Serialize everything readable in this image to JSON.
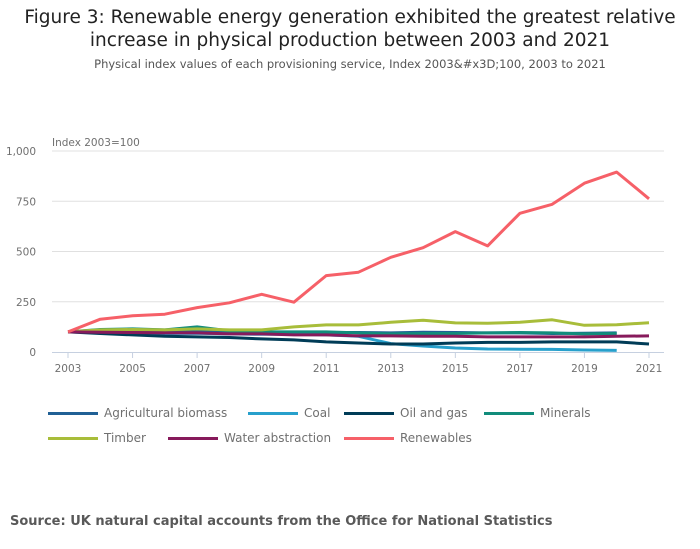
{
  "title": "Figure 3: Renewable energy generation exhibited the greatest relative increase in physical production between 2003 and 2021",
  "subtitle": "Physical index values of each provisioning service, Index 2003&#x3D;100, 2003 to 2021",
  "source": "Source: UK natural capital accounts from the Office for National Statistics",
  "chart_data": {
    "type": "line",
    "title": "Figure 3: Renewable energy generation exhibited the greatest relative increase in physical production between 2003 and 2021",
    "ylabel": "Index 2003=100",
    "xlabel": "",
    "ylim": [
      0,
      1000
    ],
    "yticks": [
      0,
      250,
      500,
      750,
      1000
    ],
    "ytick_labels": [
      "0",
      "250",
      "500",
      "750",
      "1,000"
    ],
    "xticks": [
      "2003",
      "2005",
      "2007",
      "2009",
      "2011",
      "2013",
      "2015",
      "2017",
      "2019",
      "2021"
    ],
    "x": [
      2003,
      2004,
      2005,
      2006,
      2007,
      2008,
      2009,
      2010,
      2011,
      2012,
      2013,
      2014,
      2015,
      2016,
      2017,
      2018,
      2019,
      2020,
      2021
    ],
    "grid": true,
    "legend_position": "bottom",
    "series": [
      {
        "name": "Agricultural biomass",
        "color": "#206095",
        "values": [
          100,
          100,
          102,
          100,
          100,
          98,
          95,
          95,
          97,
          97,
          95,
          98,
          97,
          95,
          95,
          92,
          93,
          95,
          null
        ]
      },
      {
        "name": "Coal",
        "color": "#27a0cc",
        "values": [
          100,
          96,
          95,
          92,
          93,
          90,
          88,
          88,
          85,
          78,
          42,
          30,
          20,
          15,
          14,
          13,
          10,
          8,
          null
        ]
      },
      {
        "name": "Oil and gas",
        "color": "#003c57",
        "values": [
          100,
          92,
          85,
          78,
          75,
          72,
          65,
          60,
          50,
          45,
          40,
          40,
          45,
          48,
          48,
          50,
          50,
          50,
          40
        ]
      },
      {
        "name": "Minerals",
        "color": "#118c7b",
        "values": [
          100,
          112,
          115,
          110,
          125,
          105,
          100,
          100,
          100,
          95,
          90,
          92,
          92,
          95,
          97,
          95,
          90,
          92,
          null
        ]
      },
      {
        "name": "Timber",
        "color": "#a8bd3a",
        "values": [
          100,
          110,
          112,
          110,
          115,
          110,
          110,
          125,
          135,
          135,
          148,
          158,
          145,
          143,
          148,
          160,
          133,
          136,
          146
        ]
      },
      {
        "name": "Water abstraction",
        "color": "#871a5b",
        "values": [
          100,
          98,
          97,
          95,
          95,
          90,
          90,
          85,
          85,
          80,
          80,
          78,
          78,
          75,
          75,
          75,
          75,
          78,
          80
        ]
      },
      {
        "name": "Renewables",
        "color": "#f66068",
        "values": [
          100,
          163,
          180,
          188,
          221,
          245,
          287,
          248,
          380,
          397,
          471,
          519,
          599,
          528,
          690,
          735,
          840,
          895,
          762
        ]
      }
    ]
  }
}
